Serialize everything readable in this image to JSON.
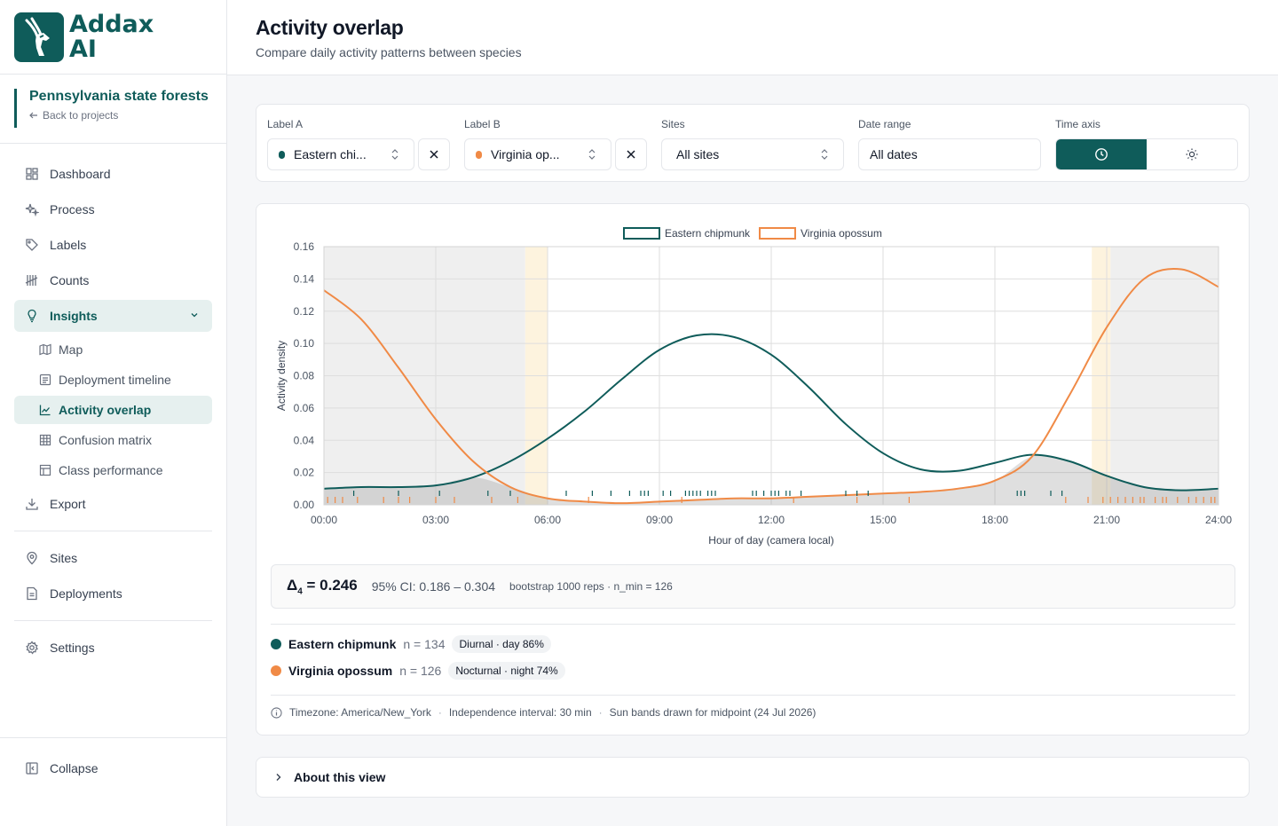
{
  "app": {
    "logo_line1": "Addax",
    "logo_line2": "AI"
  },
  "project": {
    "name": "Pennsylvania state forests",
    "back": "Back to projects"
  },
  "nav": {
    "dashboard": "Dashboard",
    "process": "Process",
    "labels": "Labels",
    "counts": "Counts",
    "insights": "Insights",
    "sub": {
      "map": "Map",
      "deployment_timeline": "Deployment timeline",
      "activity_overlap": "Activity overlap",
      "confusion_matrix": "Confusion matrix",
      "class_performance": "Class performance"
    },
    "export": "Export",
    "sites": "Sites",
    "deployments": "Deployments",
    "settings": "Settings",
    "collapse": "Collapse"
  },
  "header": {
    "title": "Activity overlap",
    "subtitle": "Compare daily activity patterns between species"
  },
  "filters": {
    "label_a": {
      "label": "Label A",
      "value": "Eastern chi...",
      "color": "#0f5c5a"
    },
    "label_b": {
      "label": "Label B",
      "value": "Virginia op...",
      "color": "#f08a46"
    },
    "sites": {
      "label": "Sites",
      "value": "All sites"
    },
    "date_range": {
      "label": "Date range",
      "value": "All dates"
    },
    "time_axis": {
      "label": "Time axis",
      "options": [
        "clock-icon",
        "sun-icon"
      ],
      "selected": "clock-icon"
    }
  },
  "stats": {
    "delta_symbol": "Δ",
    "delta_sub": "4",
    "delta_value": "= 0.246",
    "ci": "95% CI: 0.186 – 0.304",
    "bootstrap": "bootstrap 1000 reps · n_min = 126"
  },
  "species": [
    {
      "name": "Eastern chipmunk",
      "n": "n = 134",
      "badge": "Diurnal · day 86%",
      "color": "#0f5c5a"
    },
    {
      "name": "Virginia opossum",
      "n": "n = 126",
      "badge": "Nocturnal · night 74%",
      "color": "#f08a46"
    }
  ],
  "footer": {
    "timezone": "Timezone: America/New_York",
    "interval": "Independence interval: 30 min",
    "sun": "Sun bands drawn for midpoint (24 Jul 2026)"
  },
  "about": "About this view",
  "chart_data": {
    "type": "area",
    "xlabel": "Hour of day (camera local)",
    "ylabel": "Activity density",
    "xlim": [
      0,
      24
    ],
    "ylim": [
      0,
      0.16
    ],
    "xticks": [
      "00:00",
      "03:00",
      "06:00",
      "09:00",
      "12:00",
      "15:00",
      "18:00",
      "21:00",
      "24:00"
    ],
    "yticks": [
      "0.00",
      "0.02",
      "0.04",
      "0.06",
      "0.08",
      "0.10",
      "0.12",
      "0.14",
      "0.16"
    ],
    "legend": "top-center",
    "night_bands": [
      [
        0,
        5.4
      ],
      [
        21.1,
        24
      ]
    ],
    "twilight_bands": [
      [
        5.4,
        6.0
      ],
      [
        20.6,
        21.1
      ]
    ],
    "series": [
      {
        "name": "Eastern chipmunk",
        "color": "#0f5c5a",
        "x": [
          0,
          1,
          2,
          3,
          4,
          5,
          6,
          7,
          8,
          9,
          10,
          11,
          12,
          13,
          14,
          15,
          16,
          17,
          18,
          19,
          20,
          21,
          22,
          23,
          24
        ],
        "y": [
          0.01,
          0.011,
          0.011,
          0.012,
          0.017,
          0.027,
          0.041,
          0.058,
          0.078,
          0.096,
          0.105,
          0.104,
          0.093,
          0.073,
          0.05,
          0.032,
          0.022,
          0.021,
          0.026,
          0.031,
          0.027,
          0.018,
          0.011,
          0.009,
          0.01
        ],
        "rug": [
          0.8,
          2.0,
          3.1,
          4.4,
          5.0,
          6.5,
          7.2,
          7.7,
          8.2,
          8.5,
          8.6,
          8.7,
          9.1,
          9.3,
          9.7,
          9.8,
          9.9,
          10.0,
          10.1,
          10.3,
          10.4,
          10.5,
          11.5,
          11.6,
          11.8,
          12.0,
          12.1,
          12.2,
          12.4,
          12.5,
          12.8,
          14.0,
          14.3,
          14.6,
          18.6,
          18.7,
          18.8,
          19.5,
          19.8
        ]
      },
      {
        "name": "Virginia opossum",
        "color": "#f08a46",
        "x": [
          0,
          1,
          2,
          3,
          4,
          5,
          6,
          7,
          8,
          9,
          10,
          11,
          12,
          13,
          14,
          15,
          16,
          17,
          18,
          19,
          20,
          21,
          22,
          23,
          24
        ],
        "y": [
          0.133,
          0.115,
          0.085,
          0.053,
          0.027,
          0.011,
          0.004,
          0.002,
          0.001,
          0.002,
          0.003,
          0.004,
          0.004,
          0.005,
          0.006,
          0.007,
          0.008,
          0.01,
          0.015,
          0.03,
          0.068,
          0.11,
          0.14,
          0.146,
          0.135
        ],
        "rug": [
          0.1,
          0.3,
          0.5,
          0.9,
          1.6,
          2.0,
          2.3,
          3.0,
          3.5,
          4.5,
          5.2,
          7.1,
          9.6,
          12.6,
          14.3,
          15.7,
          19.9,
          20.5,
          20.9,
          21.1,
          21.3,
          21.5,
          21.7,
          21.9,
          22.0,
          22.3,
          22.5,
          22.6,
          22.9,
          23.2,
          23.4,
          23.6,
          23.8,
          23.9
        ]
      }
    ]
  }
}
